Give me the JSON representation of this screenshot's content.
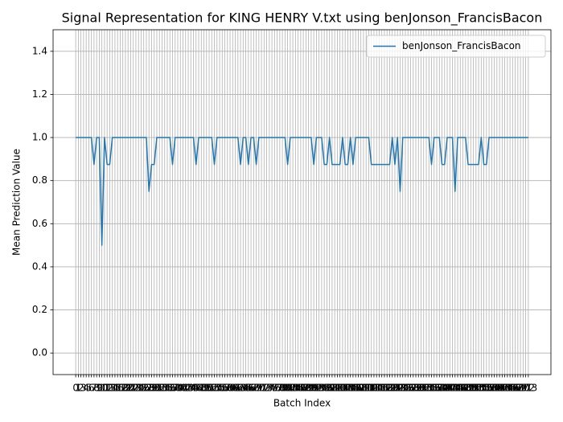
{
  "chart_data": {
    "type": "line",
    "title": "Signal Representation for KING HENRY V.txt using benJonson_FrancisBacon",
    "x_label": "Batch Index",
    "y_label": "Mean Prediction Value",
    "x": [
      0,
      1,
      2,
      3,
      4,
      5,
      6,
      7,
      8,
      9,
      10,
      11,
      12,
      13,
      14,
      15,
      16,
      17,
      18,
      19,
      20,
      21,
      22,
      23,
      24,
      25,
      26,
      27,
      28,
      29,
      30,
      31,
      32,
      33,
      34,
      35,
      36,
      37,
      38,
      39,
      40,
      41,
      42,
      43,
      44,
      45,
      46,
      47,
      48,
      49,
      50,
      51,
      52,
      53,
      54,
      55,
      56,
      57,
      58,
      59,
      60,
      61,
      62,
      63,
      64,
      65,
      66,
      67,
      68,
      69,
      70,
      71,
      72,
      73,
      74,
      75,
      76,
      77,
      78,
      79,
      80,
      81,
      82,
      83,
      84,
      85,
      86,
      87,
      88,
      89,
      90,
      91,
      92,
      93,
      94,
      95,
      96,
      97,
      98,
      99,
      100,
      101,
      102,
      103,
      104,
      105,
      106,
      107,
      108,
      109,
      110,
      111,
      112,
      113,
      114,
      115,
      116,
      117,
      118,
      119,
      120,
      121,
      122,
      123,
      124,
      125,
      126,
      127,
      128,
      129,
      130,
      131,
      132,
      133,
      134,
      135,
      136,
      137,
      138,
      139,
      140,
      141,
      142,
      143,
      144,
      145,
      146,
      147,
      148,
      149,
      150,
      151,
      152,
      153,
      154,
      155,
      156,
      157,
      158,
      159,
      160,
      161,
      162,
      163,
      164,
      165,
      166,
      167,
      168,
      169,
      170,
      171,
      172,
      173
    ],
    "series": [
      {
        "name": "benJonson_FrancisBacon",
        "color": "#1f77b4",
        "values": [
          1,
          1,
          1,
          1,
          1,
          1,
          1,
          0.875,
          1,
          1,
          0.5,
          1,
          0.875,
          0.875,
          1,
          1,
          1,
          1,
          1,
          1,
          1,
          1,
          1,
          1,
          1,
          1,
          1,
          1,
          0.75,
          0.875,
          0.875,
          1,
          1,
          1,
          1,
          1,
          1,
          0.875,
          1,
          1,
          1,
          1,
          1,
          1,
          1,
          1,
          0.875,
          1,
          1,
          1,
          1,
          1,
          1,
          0.875,
          1,
          1,
          1,
          1,
          1,
          1,
          1,
          1,
          1,
          0.875,
          1,
          1,
          0.875,
          1,
          1,
          0.875,
          1,
          1,
          1,
          1,
          1,
          1,
          1,
          1,
          1,
          1,
          1,
          0.875,
          1,
          1,
          1,
          1,
          1,
          1,
          1,
          1,
          1,
          0.875,
          1,
          1,
          1,
          0.875,
          0.875,
          1,
          0.875,
          0.875,
          0.875,
          0.875,
          1,
          0.875,
          0.875,
          1,
          0.875,
          1,
          1,
          1,
          1,
          1,
          1,
          0.875,
          0.875,
          0.875,
          0.875,
          0.875,
          0.875,
          0.875,
          0.875,
          1,
          0.875,
          1,
          0.75,
          1,
          1,
          1,
          1,
          1,
          1,
          1,
          1,
          1,
          1,
          1,
          0.875,
          1,
          1,
          1,
          0.875,
          0.875,
          1,
          1,
          1,
          0.75,
          1,
          1,
          1,
          1,
          0.875,
          0.875,
          0.875,
          0.875,
          0.875,
          1,
          0.875,
          0.875,
          1,
          1,
          1,
          1,
          1,
          1,
          1,
          1,
          1,
          1,
          1,
          1,
          1,
          1,
          1,
          1
        ]
      }
    ],
    "xlim": [
      -8.65,
      181.65
    ],
    "xticks": [
      0,
      1,
      2,
      3,
      4,
      5,
      6,
      7,
      8,
      9,
      10,
      11,
      12,
      13,
      14,
      15,
      16,
      17,
      18,
      19,
      20,
      21,
      22,
      23,
      24,
      25,
      26,
      27,
      28,
      29,
      30,
      31,
      32,
      33,
      34,
      35,
      36,
      37,
      38,
      39,
      40,
      41,
      42,
      43,
      44,
      45,
      46,
      47,
      48,
      49,
      50,
      51,
      52,
      53,
      54,
      55,
      56,
      57,
      58,
      59,
      60,
      61,
      62,
      63,
      64,
      65,
      66,
      67,
      68,
      69,
      70,
      71,
      72,
      73,
      74,
      75,
      76,
      77,
      78,
      79,
      80,
      81,
      82,
      83,
      84,
      85,
      86,
      87,
      88,
      89,
      90,
      91,
      92,
      93,
      94,
      95,
      96,
      97,
      98,
      99,
      100,
      101,
      102,
      103,
      104,
      105,
      106,
      107,
      108,
      109,
      110,
      111,
      112,
      113,
      114,
      115,
      116,
      117,
      118,
      119,
      120,
      121,
      122,
      123,
      124,
      125,
      126,
      127,
      128,
      129,
      130,
      131,
      132,
      133,
      134,
      135,
      136,
      137,
      138,
      139,
      140,
      141,
      142,
      143,
      144,
      145,
      146,
      147,
      148,
      149,
      150,
      151,
      152,
      153,
      154,
      155,
      156,
      157,
      158,
      159,
      160,
      161,
      162,
      163,
      164,
      165,
      166,
      167,
      168,
      169,
      170,
      171,
      172,
      173
    ],
    "ylim": [
      -0.1,
      1.5
    ],
    "yticks": [
      {
        "value": 0,
        "label": "0.0"
      },
      0.2,
      0.4,
      0.6,
      0.8,
      {
        "value": 1,
        "label": "1.0"
      },
      1.2,
      1.4
    ],
    "grid": true,
    "legend": "upper right"
  }
}
